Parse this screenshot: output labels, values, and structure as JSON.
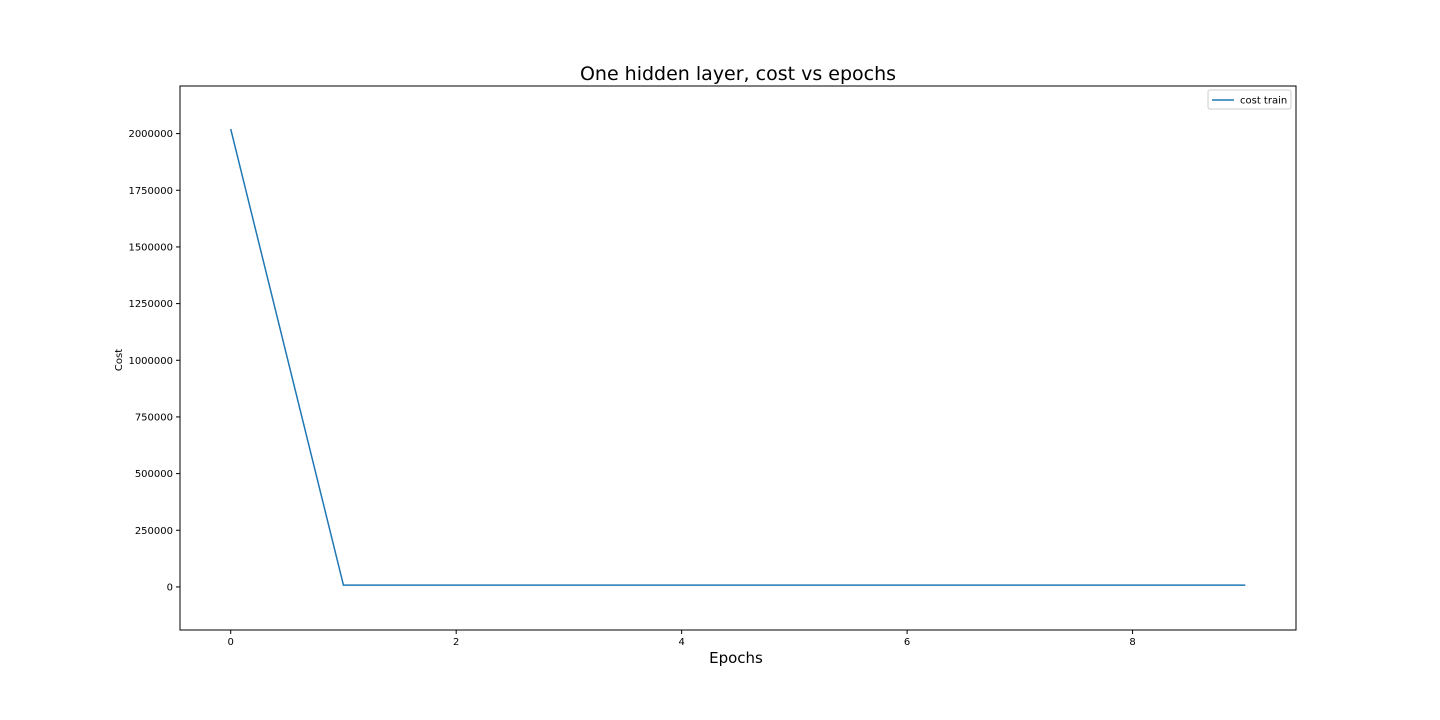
{
  "chart_data": {
    "type": "line",
    "title": "One hidden layer, cost vs epochs",
    "xlabel": "Epochs",
    "ylabel": "Cost",
    "xlim": [
      -0.45,
      9.45
    ],
    "ylim": [
      -190000,
      2210000
    ],
    "xticks": [
      0,
      2,
      4,
      6,
      8
    ],
    "xtick_labels": [
      "0",
      "2",
      "4",
      "6",
      "8"
    ],
    "yticks": [
      0,
      250000,
      500000,
      750000,
      1000000,
      1250000,
      1500000,
      1750000,
      2000000
    ],
    "ytick_labels": [
      "0",
      "250000",
      "500000",
      "750000",
      "1000000",
      "1250000",
      "1500000",
      "1750000",
      "2000000"
    ],
    "grid": false,
    "legend_position": "top-right",
    "series": [
      {
        "name": "cost train",
        "color": "#1f77b4",
        "x": [
          0,
          1,
          2,
          3,
          4,
          5,
          6,
          7,
          8,
          9
        ],
        "y": [
          2020000,
          8000,
          8000,
          8000,
          8000,
          8000,
          8000,
          8000,
          8000,
          8000
        ]
      }
    ]
  }
}
